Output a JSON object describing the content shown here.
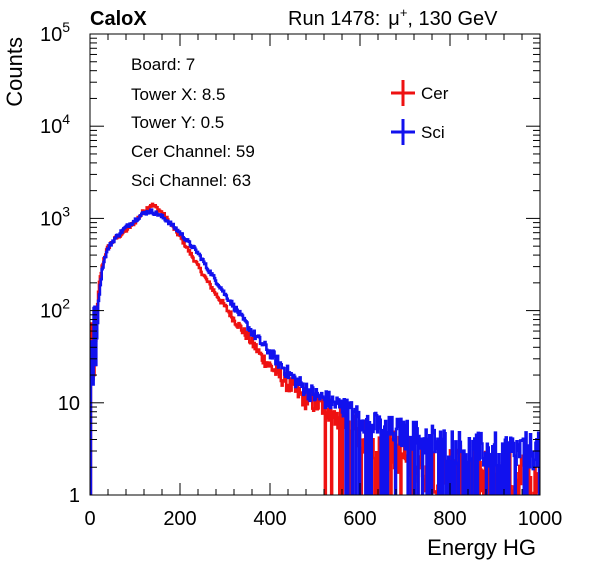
{
  "header": {
    "left": "CaloX",
    "run": "Run 1478:",
    "particle_base": "μ",
    "particle_sup": "+",
    "energy": ", 130 GeV"
  },
  "info_box": [
    "Board: 7",
    "Tower X: 8.5",
    "Tower Y: 0.5",
    "Cer Channel: 59",
    "Sci Channel: 63"
  ],
  "colors": {
    "cer": "#ee1111",
    "sci": "#1111ee"
  },
  "chart_data": {
    "type": "line",
    "style": "step histogram",
    "title": "",
    "xlabel": "Energy HG",
    "ylabel": "Counts",
    "xlim": [
      0,
      1000
    ],
    "ylim": [
      1,
      100000
    ],
    "yscale": "log",
    "grid": false,
    "legend_position": "top-right",
    "x_ticks": [
      "0",
      "200",
      "400",
      "600",
      "800",
      "1000"
    ],
    "y_ticks": [
      {
        "base": "1",
        "exp": ""
      },
      {
        "base": "10",
        "exp": ""
      },
      {
        "base": "10",
        "exp": "2"
      },
      {
        "base": "10",
        "exp": "3"
      },
      {
        "base": "10",
        "exp": "4"
      },
      {
        "base": "10",
        "exp": "5"
      }
    ],
    "bin_width": 2,
    "series": [
      {
        "name": "Cer",
        "color": "#ee1111",
        "points": [
          [
            0,
            0
          ],
          [
            2,
            100
          ],
          [
            4,
            40
          ],
          [
            6,
            20
          ],
          [
            8,
            14
          ],
          [
            10,
            18
          ],
          [
            12,
            30
          ],
          [
            14,
            60
          ],
          [
            16,
            90
          ],
          [
            18,
            130
          ],
          [
            20,
            180
          ],
          [
            25,
            260
          ],
          [
            30,
            350
          ],
          [
            35,
            420
          ],
          [
            40,
            480
          ],
          [
            50,
            560
          ],
          [
            60,
            620
          ],
          [
            70,
            680
          ],
          [
            80,
            740
          ],
          [
            90,
            820
          ],
          [
            100,
            920
          ],
          [
            110,
            1050
          ],
          [
            120,
            1200
          ],
          [
            130,
            1330
          ],
          [
            135,
            1400
          ],
          [
            140,
            1380
          ],
          [
            150,
            1280
          ],
          [
            160,
            1150
          ],
          [
            170,
            1000
          ],
          [
            180,
            860
          ],
          [
            190,
            740
          ],
          [
            200,
            630
          ],
          [
            220,
            440
          ],
          [
            240,
            300
          ],
          [
            260,
            210
          ],
          [
            280,
            150
          ],
          [
            300,
            110
          ],
          [
            320,
            80
          ],
          [
            340,
            60
          ],
          [
            360,
            45
          ],
          [
            380,
            32
          ],
          [
            400,
            25
          ],
          [
            420,
            20
          ],
          [
            440,
            16
          ],
          [
            460,
            13
          ],
          [
            480,
            11
          ],
          [
            500,
            10
          ],
          [
            520,
            9
          ],
          [
            540,
            8
          ],
          [
            560,
            6
          ],
          [
            580,
            5
          ],
          [
            600,
            4.5
          ],
          [
            620,
            4
          ],
          [
            640,
            3.5
          ],
          [
            660,
            3
          ],
          [
            680,
            3
          ],
          [
            700,
            2.5
          ],
          [
            720,
            2.5
          ],
          [
            740,
            2
          ],
          [
            760,
            2
          ],
          [
            780,
            2
          ],
          [
            800,
            2
          ],
          [
            840,
            1.5
          ],
          [
            880,
            1.5
          ],
          [
            920,
            1.5
          ],
          [
            960,
            1.5
          ],
          [
            1000,
            1.5
          ]
        ]
      },
      {
        "name": "Sci",
        "color": "#1111ee",
        "points": [
          [
            0,
            0
          ],
          [
            2,
            70
          ],
          [
            4,
            30
          ],
          [
            6,
            14
          ],
          [
            8,
            12
          ],
          [
            10,
            200
          ],
          [
            12,
            18
          ],
          [
            14,
            40
          ],
          [
            16,
            60
          ],
          [
            18,
            100
          ],
          [
            20,
            140
          ],
          [
            25,
            230
          ],
          [
            30,
            330
          ],
          [
            35,
            400
          ],
          [
            40,
            470
          ],
          [
            50,
            560
          ],
          [
            60,
            640
          ],
          [
            70,
            720
          ],
          [
            80,
            800
          ],
          [
            90,
            880
          ],
          [
            100,
            960
          ],
          [
            110,
            1050
          ],
          [
            120,
            1140
          ],
          [
            130,
            1180
          ],
          [
            135,
            1200
          ],
          [
            140,
            1170
          ],
          [
            150,
            1120
          ],
          [
            160,
            1040
          ],
          [
            170,
            960
          ],
          [
            180,
            870
          ],
          [
            190,
            780
          ],
          [
            200,
            700
          ],
          [
            220,
            540
          ],
          [
            240,
            420
          ],
          [
            260,
            290
          ],
          [
            280,
            210
          ],
          [
            300,
            150
          ],
          [
            320,
            110
          ],
          [
            340,
            80
          ],
          [
            360,
            58
          ],
          [
            380,
            45
          ],
          [
            400,
            35
          ],
          [
            420,
            27
          ],
          [
            440,
            21
          ],
          [
            460,
            17
          ],
          [
            480,
            14
          ],
          [
            500,
            12
          ],
          [
            520,
            11
          ],
          [
            540,
            10
          ],
          [
            560,
            9
          ],
          [
            580,
            8
          ],
          [
            600,
            7
          ],
          [
            620,
            6
          ],
          [
            640,
            5.5
          ],
          [
            660,
            5
          ],
          [
            680,
            5
          ],
          [
            700,
            4.5
          ],
          [
            720,
            4.5
          ],
          [
            740,
            4
          ],
          [
            760,
            4
          ],
          [
            780,
            3.5
          ],
          [
            800,
            3.5
          ],
          [
            840,
            3
          ],
          [
            880,
            3
          ],
          [
            920,
            3
          ],
          [
            960,
            3
          ],
          [
            1000,
            3
          ]
        ]
      }
    ]
  }
}
